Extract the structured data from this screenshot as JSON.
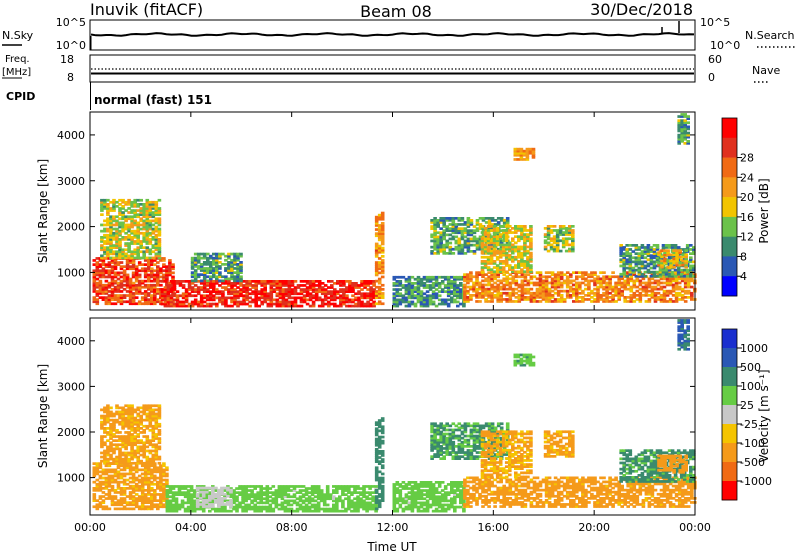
{
  "header": {
    "station": "Inuvik (fitACF)",
    "beam": "Beam 08",
    "date": "30/Dec/2018"
  },
  "summary_panels": {
    "nsky_label": "N.Sky",
    "nsky_ticks": [
      "10^5",
      "10^0"
    ],
    "nsearch_label": "N.Search",
    "nsearch_ticks": [
      "10^5",
      "10^0"
    ],
    "freq_label_line1": "Freq.",
    "freq_label_line2": "[MHz]",
    "freq_ticks": [
      "18",
      "8"
    ],
    "nave_label": "Nave",
    "nave_ticks": [
      "60",
      "0"
    ],
    "cpid_label": "CPID",
    "cpid_value": "normal (fast) 151"
  },
  "colors": {
    "power": [
      "#0000ff",
      "#2a58b5",
      "#3a8a6e",
      "#6bc24a",
      "#f2c400",
      "#f59a1a",
      "#f06a14",
      "#e0301e",
      "#ff0000"
    ],
    "velocity": [
      "#1a2fcf",
      "#2a58b5",
      "#3a8a6e",
      "#66cc44",
      "#c8c8c8",
      "#f5c400",
      "#f59a1a",
      "#f06a14",
      "#ff0000"
    ]
  },
  "chart_data": [
    {
      "type": "heatmap",
      "name": "power",
      "ylabel": "Slant Range [km]",
      "xlabel": "",
      "x_ticks": [
        "00:00",
        "04:00",
        "08:00",
        "12:00",
        "16:00",
        "20:00",
        "00:00"
      ],
      "y_ticks": [
        "1000",
        "2000",
        "3000",
        "4000"
      ],
      "ylim": [
        180,
        4500
      ],
      "xlim_hours": [
        0,
        24
      ],
      "colorbar_label": "Power [dB]",
      "colorbar_ticks": [
        "4",
        "8",
        "12",
        "16",
        "20",
        "24",
        "28"
      ],
      "colorbar_range": [
        0,
        32
      ],
      "regions": [
        {
          "t": [
            0.1,
            3.3
          ],
          "r": [
            300,
            1300
          ],
          "v": 26
        },
        {
          "t": [
            0.4,
            2.8
          ],
          "r": [
            1300,
            2600
          ],
          "v": 15
        },
        {
          "t": [
            2.8,
            11.3
          ],
          "r": [
            250,
            800
          ],
          "v": 28
        },
        {
          "t": [
            4.0,
            6.0
          ],
          "r": [
            800,
            1400
          ],
          "v": 10
        },
        {
          "t": [
            11.3,
            11.6
          ],
          "r": [
            300,
            2300
          ],
          "v": 20
        },
        {
          "t": [
            12.0,
            14.8
          ],
          "r": [
            250,
            900
          ],
          "v": 9
        },
        {
          "t": [
            13.5,
            16.5
          ],
          "r": [
            1400,
            2200
          ],
          "v": 11
        },
        {
          "t": [
            14.8,
            24.0
          ],
          "r": [
            350,
            1000
          ],
          "v": 21
        },
        {
          "t": [
            15.5,
            17.5
          ],
          "r": [
            1000,
            2000
          ],
          "v": 16
        },
        {
          "t": [
            16.8,
            17.6
          ],
          "r": [
            3450,
            3700
          ],
          "v": 20
        },
        {
          "t": [
            18.0,
            19.2
          ],
          "r": [
            1450,
            2000
          ],
          "v": 14
        },
        {
          "t": [
            21.0,
            24.0
          ],
          "r": [
            900,
            1600
          ],
          "v": 10
        },
        {
          "t": [
            22.5,
            23.6
          ],
          "r": [
            1100,
            1500
          ],
          "v": 18
        },
        {
          "t": [
            23.3,
            23.7
          ],
          "r": [
            3800,
            4450
          ],
          "v": 10
        }
      ]
    },
    {
      "type": "heatmap",
      "name": "velocity",
      "ylabel": "Slant Range [km]",
      "xlabel": "Time UT",
      "x_ticks": [
        "00:00",
        "04:00",
        "08:00",
        "12:00",
        "16:00",
        "20:00",
        "00:00"
      ],
      "y_ticks": [
        "1000",
        "2000",
        "3000",
        "4000"
      ],
      "ylim": [
        180,
        4500
      ],
      "xlim_hours": [
        0,
        24
      ],
      "colorbar_label": "Velocity [m s⁻¹]",
      "colorbar_ticks": [
        "1000",
        "500",
        "100",
        "25",
        "-25",
        "-100",
        "-500",
        "-1000"
      ],
      "regions": [
        {
          "t": [
            0.1,
            3.0
          ],
          "r": [
            300,
            1300
          ],
          "v": -180
        },
        {
          "t": [
            0.4,
            2.8
          ],
          "r": [
            1300,
            2600
          ],
          "v": -150
        },
        {
          "t": [
            3.0,
            11.3
          ],
          "r": [
            250,
            800
          ],
          "v": 60
        },
        {
          "t": [
            4.2,
            5.6
          ],
          "r": [
            350,
            800
          ],
          "v": 5
        },
        {
          "t": [
            11.3,
            11.6
          ],
          "r": [
            300,
            2300
          ],
          "v": 250
        },
        {
          "t": [
            12.0,
            14.8
          ],
          "r": [
            250,
            900
          ],
          "v": 60
        },
        {
          "t": [
            13.5,
            16.5
          ],
          "r": [
            1400,
            2200
          ],
          "v": 120
        },
        {
          "t": [
            14.8,
            24.0
          ],
          "r": [
            350,
            1000
          ],
          "v": -200
        },
        {
          "t": [
            15.5,
            17.5
          ],
          "r": [
            1000,
            2000
          ],
          "v": -120
        },
        {
          "t": [
            16.8,
            17.6
          ],
          "r": [
            3450,
            3700
          ],
          "v": 80
        },
        {
          "t": [
            18.0,
            19.2
          ],
          "r": [
            1450,
            2000
          ],
          "v": -140
        },
        {
          "t": [
            21.0,
            24.0
          ],
          "r": [
            900,
            1600
          ],
          "v": 150
        },
        {
          "t": [
            22.5,
            23.6
          ],
          "r": [
            1100,
            1500
          ],
          "v": -250
        },
        {
          "t": [
            23.3,
            23.7
          ],
          "r": [
            3800,
            4450
          ],
          "v": 600
        }
      ]
    }
  ]
}
